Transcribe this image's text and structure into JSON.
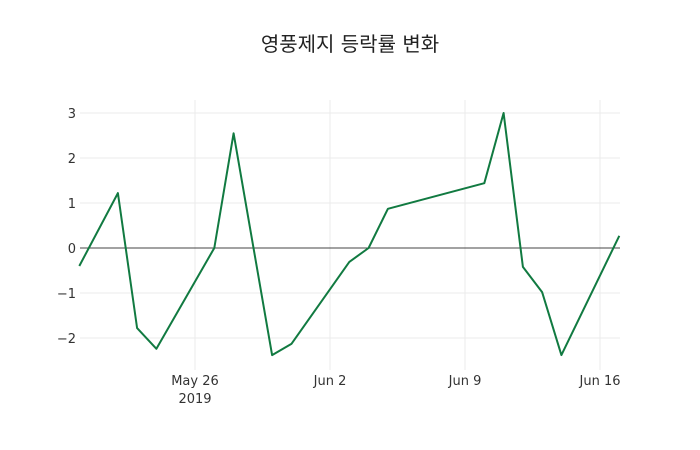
{
  "chart_data": {
    "type": "line",
    "title": "영풍제지 등락률 변화",
    "xlabel": "",
    "ylabel": "",
    "x": [
      "2019-05-20",
      "2019-05-22",
      "2019-05-23",
      "2019-05-24",
      "2019-05-27",
      "2019-05-28",
      "2019-05-30",
      "2019-05-31",
      "2019-06-03",
      "2019-06-04",
      "2019-06-05",
      "2019-06-10",
      "2019-06-11",
      "2019-06-12",
      "2019-06-13",
      "2019-06-14",
      "2019-06-17"
    ],
    "series": [
      {
        "name": "등락률",
        "color": "#117a41",
        "values": [
          -0.4,
          1.22,
          -1.78,
          -2.24,
          0.0,
          2.55,
          -2.38,
          -2.13,
          -0.31,
          0.0,
          0.87,
          1.44,
          3.0,
          -0.42,
          -0.98,
          -2.38,
          0.27
        ]
      }
    ],
    "ylim": [
      -2.6,
      3.3
    ],
    "yticks": [
      -2,
      -1,
      0,
      1,
      2,
      3
    ],
    "ytick_labels": [
      "−2",
      "−1",
      "0",
      "1",
      "2",
      "3"
    ],
    "xticks": [
      "May 26\n2019",
      "Jun 2",
      "Jun 9",
      "Jun 16"
    ],
    "grid": true,
    "legend": false
  },
  "title": "영풍제지 등락률 변화",
  "xtick_labels": [
    "May 26",
    "Jun 2",
    "Jun 9",
    "Jun 16"
  ],
  "xtick_year": "2019",
  "ytick_labels": [
    "3",
    "2",
    "1",
    "0",
    "−1",
    "−2"
  ]
}
